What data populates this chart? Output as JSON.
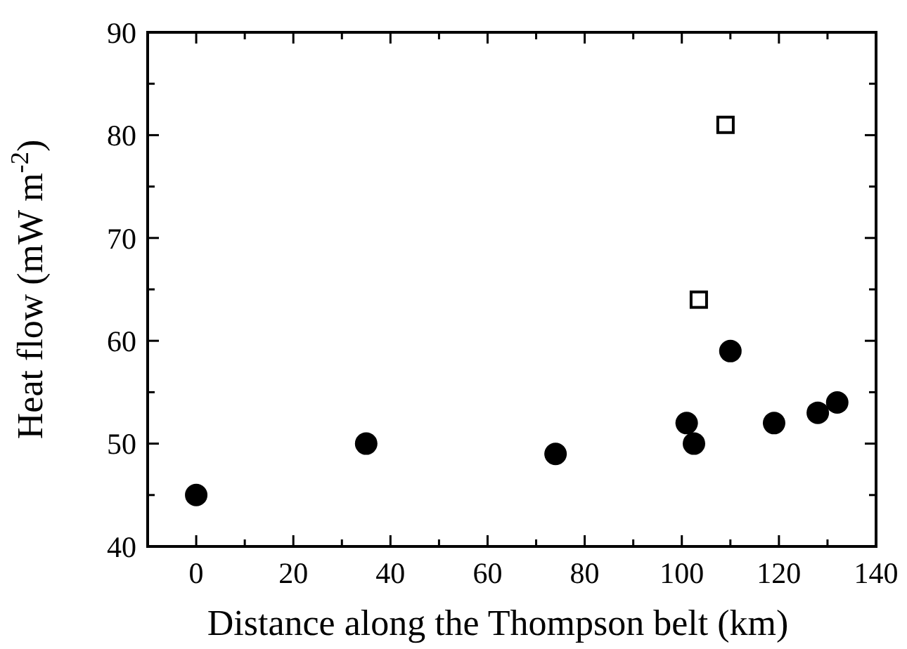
{
  "chart_data": {
    "type": "scatter",
    "xlabel": "Distance along the Thompson belt (km)",
    "ylabel": "Heat flow (mW m$^{-2}$)",
    "xlim": [
      -10,
      140
    ],
    "ylim": [
      40,
      90
    ],
    "xticks": [
      0,
      {
        "value": 10,
        "label": null
      },
      20,
      {
        "value": 30,
        "label": null
      },
      40,
      {
        "value": 50,
        "label": null
      },
      60,
      {
        "value": 70,
        "label": null
      },
      80,
      {
        "value": 90,
        "label": null
      },
      100,
      {
        "value": 110,
        "label": null
      },
      120,
      {
        "value": 130,
        "label": null
      },
      140
    ],
    "yticks": [
      40,
      {
        "value": 45,
        "label": null
      },
      50,
      {
        "value": 55,
        "label": null
      },
      60,
      {
        "value": 65,
        "label": null
      },
      70,
      {
        "value": 75,
        "label": null
      },
      80,
      {
        "value": 85,
        "label": null
      },
      90
    ],
    "grid": false,
    "series": [
      {
        "color": "#000000",
        "marker": "circle",
        "x": [
          0,
          35,
          74,
          101,
          102.5,
          110,
          119,
          128,
          132
        ],
        "values": [
          45,
          50,
          49,
          52,
          50,
          59,
          52,
          53,
          54
        ]
      },
      {
        "color": "#000000",
        "marker": "square",
        "x": [
          103.5,
          109
        ],
        "values": [
          64,
          81
        ]
      }
    ]
  }
}
